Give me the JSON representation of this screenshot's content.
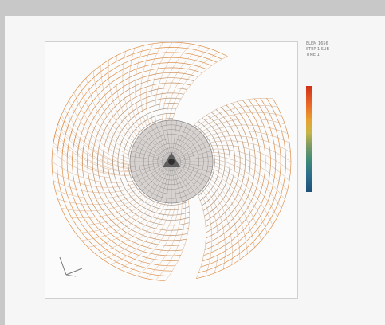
{
  "window": {
    "background": "#c8c8c8",
    "page_background": "#f6f6f6"
  },
  "figure": {
    "description_icon": "fan-blade-mesh-icon",
    "triad_icon": "axis-triad-icon"
  },
  "info": {
    "rows": [
      "ELEM   1656",
      "STEP   1  SUB",
      "TIME   1"
    ]
  },
  "legend": {
    "top_label": "",
    "middle_label": "",
    "bottom_label": "",
    "colors": [
      "#d03018",
      "#e86b28",
      "#e8a030",
      "#c6b548",
      "#7e9a63",
      "#3e8a78",
      "#2c6c8c",
      "#1e5178"
    ]
  },
  "footer": {
    "caption": ""
  }
}
